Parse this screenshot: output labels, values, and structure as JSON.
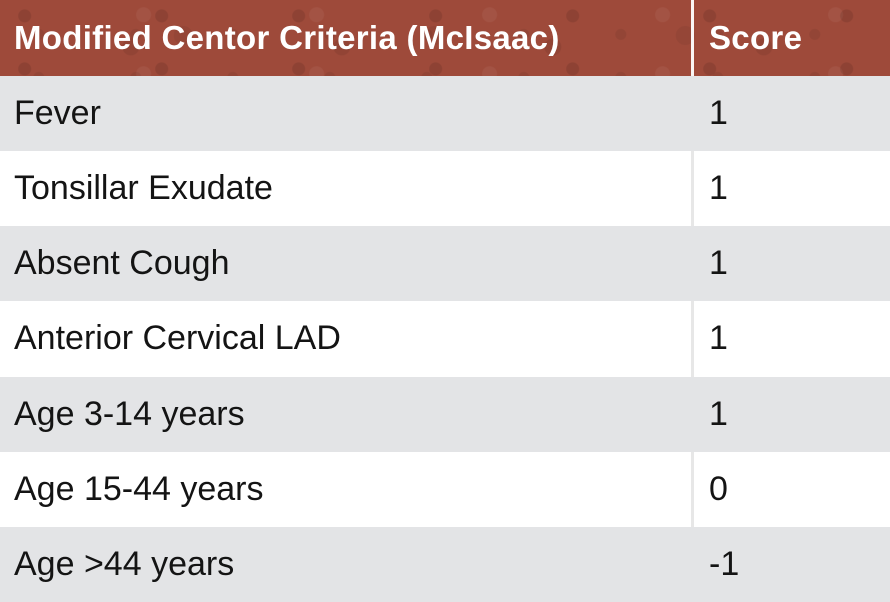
{
  "table": {
    "header": {
      "criteria_label": "Modified Centor Criteria (McIsaac)",
      "score_label": "Score"
    },
    "rows": [
      {
        "criteria": "Fever",
        "score": "1"
      },
      {
        "criteria": "Tonsillar Exudate",
        "score": "1"
      },
      {
        "criteria": "Absent Cough",
        "score": "1"
      },
      {
        "criteria": "Anterior Cervical LAD",
        "score": "1"
      },
      {
        "criteria": "Age 3-14 years",
        "score": "1"
      },
      {
        "criteria": "Age 15-44 years",
        "score": "0"
      },
      {
        "criteria": "Age >44 years",
        "score": "-1"
      }
    ],
    "colors": {
      "header_bg": "#9e4a3a",
      "header_text": "#ffffff",
      "row_alt_bg": "#e3e4e6",
      "row_bg": "#ffffff",
      "row_text": "#141414"
    }
  },
  "chart_data": {
    "type": "table",
    "title": "Modified Centor Criteria (McIsaac)",
    "columns": [
      "Modified Centor Criteria (McIsaac)",
      "Score"
    ],
    "rows": [
      [
        "Fever",
        1
      ],
      [
        "Tonsillar Exudate",
        1
      ],
      [
        "Absent Cough",
        1
      ],
      [
        "Anterior Cervical LAD",
        1
      ],
      [
        "Age 3-14 years",
        1
      ],
      [
        "Age 15-44 years",
        0
      ],
      [
        "Age >44 years",
        -1
      ]
    ]
  }
}
